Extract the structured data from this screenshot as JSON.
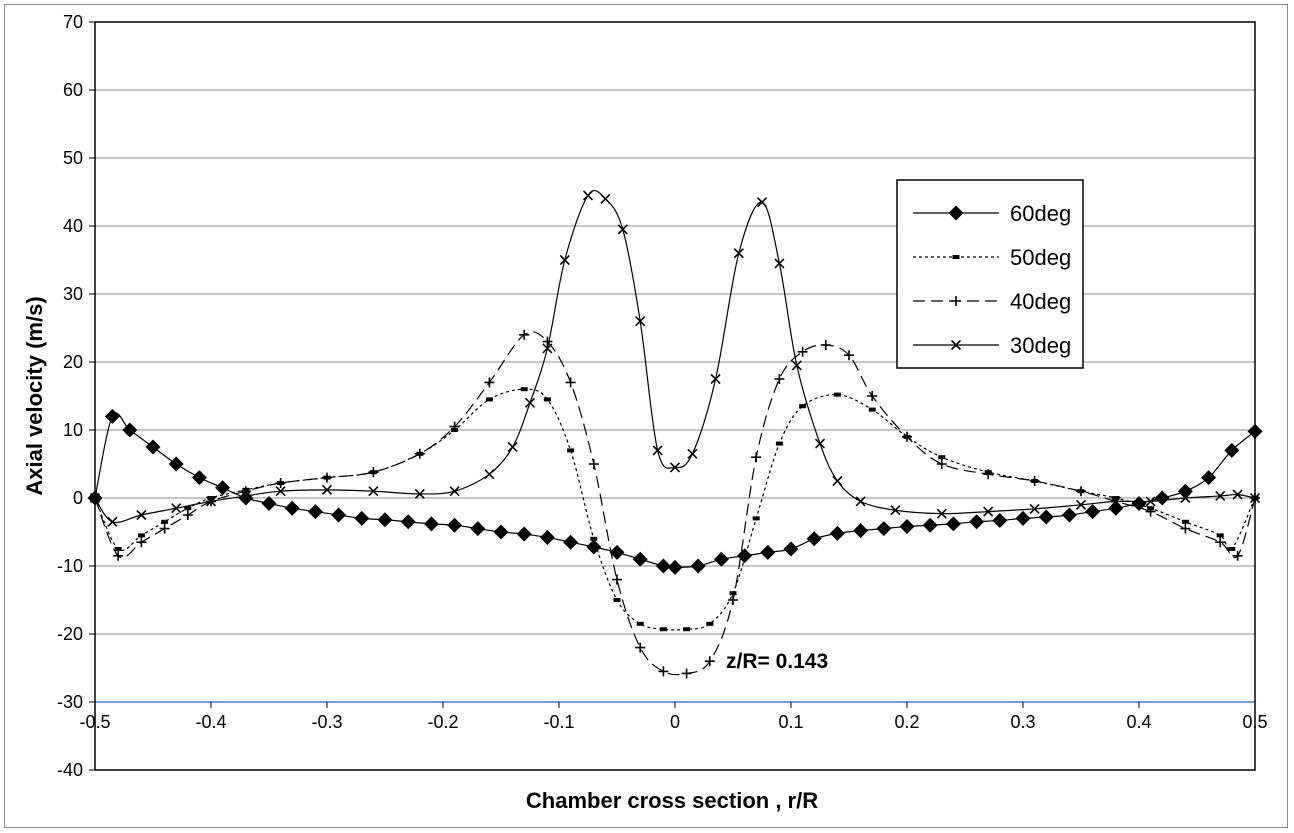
{
  "chart_data": {
    "type": "line",
    "title": "",
    "xlabel": "Chamber cross section , r/R",
    "ylabel": "Axial velocity  (m/s)",
    "xlim": [
      -0.5,
      0.5
    ],
    "ylim": [
      -40,
      70
    ],
    "x_ticks": [
      "-0.5",
      "-0.4",
      "-0.3",
      "-0.2",
      "-0.1",
      "0",
      "0.1",
      "0.2",
      "0.3",
      "0.4",
      "0.5"
    ],
    "y_ticks": [
      "70",
      "60",
      "50",
      "40",
      "30",
      "20",
      "10",
      "0",
      "-10",
      "-20",
      "-30",
      "-40"
    ],
    "grid": "horizontal",
    "legend_position": "top-right",
    "annotation": "z/R= 0.143",
    "series": [
      {
        "name": "60deg",
        "marker": "diamond",
        "line": "solid",
        "x": [
          -0.5,
          -0.485,
          -0.47,
          -0.45,
          -0.43,
          -0.41,
          -0.39,
          -0.37,
          -0.35,
          -0.33,
          -0.31,
          -0.29,
          -0.27,
          -0.25,
          -0.23,
          -0.21,
          -0.19,
          -0.17,
          -0.15,
          -0.13,
          -0.11,
          -0.09,
          -0.07,
          -0.05,
          -0.03,
          -0.01,
          0.0,
          0.02,
          0.04,
          0.06,
          0.08,
          0.1,
          0.12,
          0.14,
          0.16,
          0.18,
          0.2,
          0.22,
          0.24,
          0.26,
          0.28,
          0.3,
          0.32,
          0.34,
          0.36,
          0.38,
          0.4,
          0.42,
          0.44,
          0.46,
          0.48,
          0.5
        ],
        "y": [
          0,
          12,
          10,
          7.5,
          5,
          3,
          1.5,
          0,
          -0.8,
          -1.5,
          -2,
          -2.5,
          -3,
          -3.2,
          -3.5,
          -3.8,
          -4,
          -4.5,
          -5,
          -5.3,
          -5.8,
          -6.5,
          -7.2,
          -8,
          -9,
          -10,
          -10.2,
          -10,
          -9,
          -8.5,
          -8,
          -7.5,
          -6,
          -5.2,
          -4.8,
          -4.5,
          -4.2,
          -4,
          -3.8,
          -3.5,
          -3.3,
          -3,
          -2.8,
          -2.5,
          -2,
          -1.5,
          -0.8,
          0,
          1,
          3,
          7,
          9.8
        ]
      },
      {
        "name": "50deg",
        "marker": "dash",
        "line": "dotted",
        "x": [
          -0.5,
          -0.48,
          -0.46,
          -0.44,
          -0.42,
          -0.4,
          -0.37,
          -0.34,
          -0.3,
          -0.26,
          -0.22,
          -0.19,
          -0.16,
          -0.13,
          -0.11,
          -0.09,
          -0.07,
          -0.05,
          -0.03,
          -0.01,
          0.01,
          0.03,
          0.05,
          0.07,
          0.09,
          0.11,
          0.14,
          0.17,
          0.2,
          0.23,
          0.27,
          0.31,
          0.35,
          0.38,
          0.41,
          0.44,
          0.47,
          0.48,
          0.5
        ],
        "y": [
          0,
          -7.5,
          -5.5,
          -3.5,
          -1.5,
          0,
          1.2,
          2.2,
          3,
          3.8,
          6.5,
          10,
          14.5,
          16,
          14.5,
          7,
          -6,
          -15,
          -18.5,
          -19.3,
          -19.3,
          -18.5,
          -14,
          -3,
          8,
          13.5,
          15.2,
          13,
          9,
          6,
          3.8,
          2.5,
          1,
          0,
          -1.5,
          -3.5,
          -5.5,
          -7.5,
          0
        ]
      },
      {
        "name": "40deg",
        "marker": "plus",
        "line": "dashed",
        "x": [
          -0.5,
          -0.48,
          -0.46,
          -0.44,
          -0.42,
          -0.4,
          -0.37,
          -0.34,
          -0.3,
          -0.26,
          -0.22,
          -0.19,
          -0.16,
          -0.13,
          -0.11,
          -0.09,
          -0.07,
          -0.05,
          -0.03,
          -0.01,
          0.01,
          0.03,
          0.05,
          0.07,
          0.09,
          0.11,
          0.13,
          0.15,
          0.17,
          0.2,
          0.23,
          0.27,
          0.31,
          0.35,
          0.38,
          0.41,
          0.44,
          0.47,
          0.485,
          0.5
        ],
        "y": [
          0,
          -8.5,
          -6.5,
          -4.5,
          -2.5,
          -0.5,
          1,
          2.2,
          3,
          3.8,
          6.5,
          10.5,
          17,
          24,
          23,
          17,
          5,
          -12,
          -22,
          -25.5,
          -25.8,
          -24,
          -15,
          6,
          17.5,
          21.5,
          22.5,
          21,
          15,
          9,
          5,
          3.5,
          2.5,
          1,
          -0.5,
          -2,
          -4.5,
          -6.5,
          -8.5,
          0
        ]
      },
      {
        "name": "30deg",
        "marker": "x",
        "line": "solid",
        "x": [
          -0.5,
          -0.485,
          -0.46,
          -0.43,
          -0.4,
          -0.37,
          -0.34,
          -0.3,
          -0.26,
          -0.22,
          -0.19,
          -0.16,
          -0.14,
          -0.125,
          -0.11,
          -0.095,
          -0.075,
          -0.06,
          -0.045,
          -0.03,
          -0.015,
          0.0,
          0.015,
          0.035,
          0.055,
          0.075,
          0.09,
          0.105,
          0.125,
          0.14,
          0.16,
          0.19,
          0.23,
          0.27,
          0.31,
          0.35,
          0.38,
          0.41,
          0.44,
          0.47,
          0.485,
          0.5
        ],
        "y": [
          0,
          -3.5,
          -2.5,
          -1.5,
          -0.5,
          0.3,
          1,
          1.2,
          1,
          0.6,
          1,
          3.5,
          7.5,
          14,
          22,
          35,
          44.5,
          44,
          39.5,
          26,
          7,
          4.5,
          6.5,
          17.5,
          36,
          43.5,
          34.5,
          19.5,
          8,
          2.5,
          -0.5,
          -1.8,
          -2.3,
          -2,
          -1.6,
          -1,
          -0.5,
          -0.5,
          0,
          0.3,
          0.5,
          0
        ]
      }
    ]
  }
}
